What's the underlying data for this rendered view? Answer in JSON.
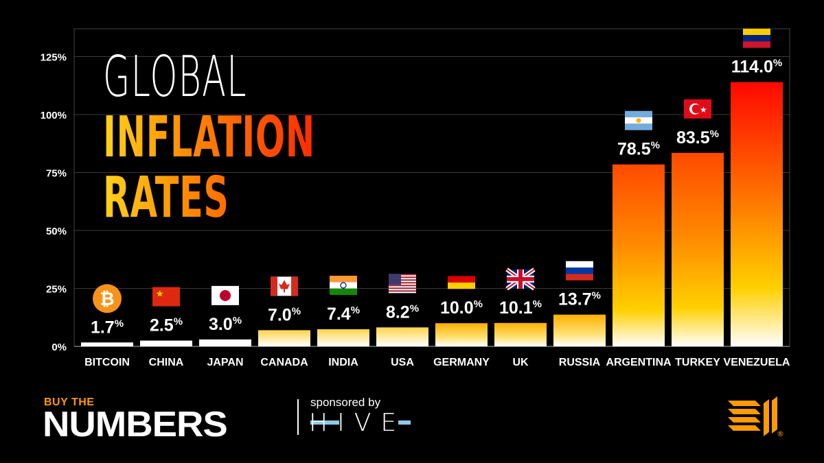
{
  "title": {
    "line1": "GLOBAL",
    "line2": "INFLATION",
    "line3": "RATES"
  },
  "chart_data": {
    "type": "bar",
    "categories": [
      "BITCOIN",
      "CHINA",
      "JAPAN",
      "CANADA",
      "INDIA",
      "USA",
      "GERMANY",
      "UK",
      "RUSSIA",
      "ARGENTINA",
      "TURKEY",
      "VENEZUELA"
    ],
    "values": [
      1.7,
      2.5,
      3.0,
      7.0,
      7.4,
      8.2,
      10.0,
      10.1,
      13.7,
      78.5,
      83.5,
      114.0
    ],
    "data_labels": [
      "1.7",
      "2.5",
      "3.0",
      "7.0",
      "7.4",
      "8.2",
      "10.0",
      "10.1",
      "13.7",
      "78.5",
      "83.5",
      "114.0"
    ],
    "value_suffix": "%",
    "icons": [
      "bitcoin-icon",
      "china-flag-icon",
      "japan-flag-icon",
      "canada-flag-icon",
      "india-flag-icon",
      "usa-flag-icon",
      "germany-flag-icon",
      "uk-flag-icon",
      "russia-flag-icon",
      "argentina-flag-icon",
      "turkey-flag-icon",
      "venezuela-flag-icon"
    ],
    "y_ticks": [
      "0%",
      "25%",
      "50%",
      "75%",
      "100%",
      "125%"
    ],
    "y_tick_values": [
      0,
      25,
      50,
      75,
      100,
      125
    ],
    "ylim": [
      0,
      137
    ],
    "grid": true,
    "colors": {
      "bar_top_hot": "#ff1a00",
      "bar_mid": "#ff8c00",
      "bar_low": "#ffd000",
      "bar_base": "#ffffff"
    }
  },
  "footer": {
    "brand_small": "BUY THE",
    "brand_big": "NUMBERS",
    "sponsored": "sponsored by",
    "sponsor_name": "HIVE",
    "trademark": "®"
  },
  "colors": {
    "background": "#000000",
    "accent_orange": "#ff9a00",
    "hive_blue": "#8fc9e8"
  }
}
